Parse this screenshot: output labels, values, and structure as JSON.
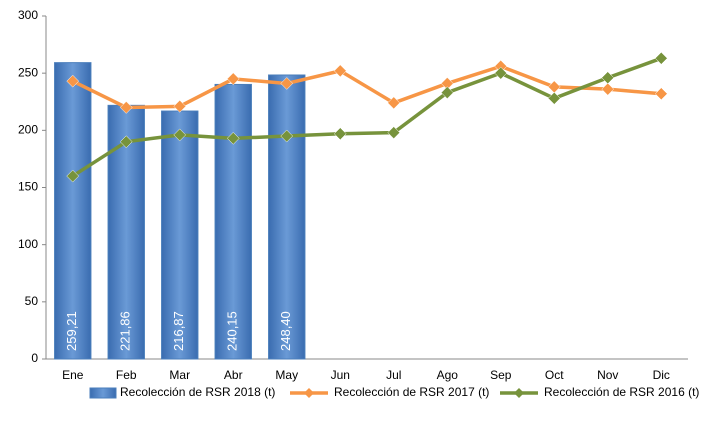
{
  "chart_data": {
    "type": "bar",
    "categories": [
      "Ene",
      "Feb",
      "Mar",
      "Abr",
      "May",
      "Jun",
      "Jul",
      "Ago",
      "Sep",
      "Oct",
      "Nov",
      "Dic"
    ],
    "series": [
      {
        "name": "Recolección de RSR 2018 (t)",
        "type": "bar",
        "color": "#4f81bd",
        "values": [
          259.21,
          221.86,
          216.87,
          240.15,
          248.4,
          null,
          null,
          null,
          null,
          null,
          null,
          null
        ],
        "value_labels": [
          "259,21",
          "221,86",
          "216,87",
          "240,15",
          "248,40",
          null,
          null,
          null,
          null,
          null,
          null,
          null
        ]
      },
      {
        "name": "Recolección de RSR 2017 (t)",
        "type": "line",
        "color": "#f79646",
        "values": [
          243,
          220,
          221,
          245,
          241,
          252,
          224,
          241,
          256,
          238,
          236,
          232
        ]
      },
      {
        "name": "Recolección de RSR 2016 (t)",
        "type": "line",
        "color": "#77933c",
        "values": [
          160,
          190,
          196,
          193,
          195,
          197,
          198,
          233,
          250,
          228,
          246,
          263
        ]
      }
    ],
    "ylim": [
      0,
      300
    ],
    "yticks": [
      0,
      50,
      100,
      150,
      200,
      250,
      300
    ],
    "grid": false,
    "legend": "bottom"
  }
}
